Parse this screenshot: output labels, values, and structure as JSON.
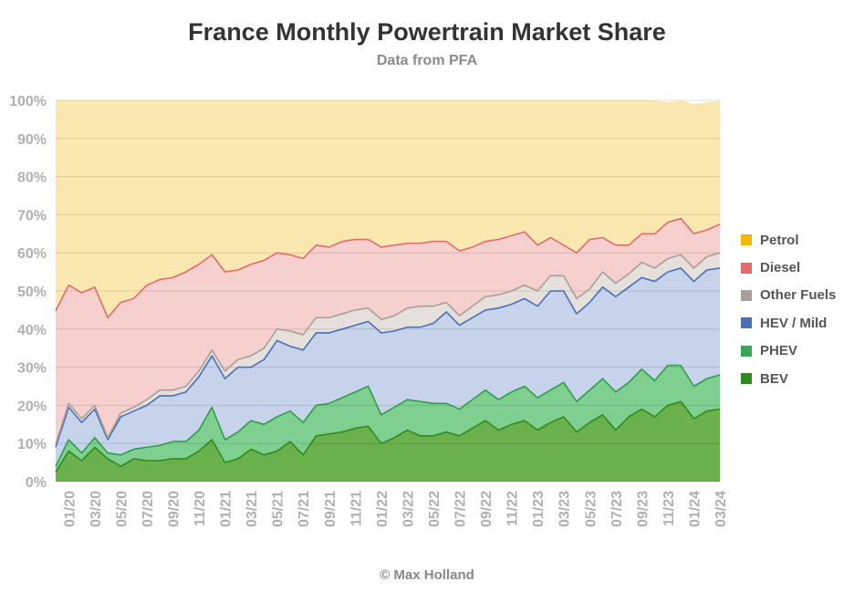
{
  "chart_data": {
    "type": "area",
    "stacked": true,
    "title": "France Monthly Powertrain Market Share",
    "subtitle": "Data from PFA",
    "credit": "© Max Holland",
    "y_ticks": [
      "0%",
      "10%",
      "20%",
      "30%",
      "40%",
      "50%",
      "60%",
      "70%",
      "80%",
      "90%",
      "100%"
    ],
    "ylim": [
      0,
      100
    ],
    "x": [
      "12/19",
      "01/20",
      "02/20",
      "03/20",
      "04/20",
      "05/20",
      "06/20",
      "07/20",
      "08/20",
      "09/20",
      "10/20",
      "11/20",
      "12/20",
      "01/21",
      "02/21",
      "03/21",
      "04/21",
      "05/21",
      "06/21",
      "07/21",
      "08/21",
      "09/21",
      "10/21",
      "11/21",
      "12/21",
      "01/22",
      "02/22",
      "03/22",
      "04/22",
      "05/22",
      "06/22",
      "07/22",
      "08/22",
      "09/22",
      "10/22",
      "11/22",
      "12/22",
      "01/23",
      "02/23",
      "03/23",
      "04/23",
      "05/23",
      "06/23",
      "07/23",
      "08/23",
      "09/23",
      "10/23",
      "11/23",
      "12/23",
      "01/24",
      "02/24",
      "03/24"
    ],
    "x_tick_labels": [
      "01/20",
      "03/20",
      "05/20",
      "07/20",
      "09/20",
      "11/20",
      "01/21",
      "03/21",
      "05/21",
      "07/21",
      "09/21",
      "11/21",
      "01/22",
      "03/22",
      "05/22",
      "07/22",
      "09/22",
      "11/22",
      "01/23",
      "03/23",
      "05/23",
      "07/23",
      "09/23",
      "11/23",
      "01/24",
      "03/24"
    ],
    "grid": true,
    "legend_position": "right",
    "series": [
      {
        "name": "BEV",
        "color": "#2e8b1e",
        "fill": "#6ab04c",
        "line_color": "#2e8b1e",
        "values": [
          2.5,
          8,
          5.5,
          9,
          6,
          4,
          6,
          5.5,
          5.5,
          6,
          6,
          8,
          11,
          5,
          6,
          8.5,
          7,
          8,
          10.5,
          7,
          12,
          12.5,
          13,
          14,
          14.5,
          10,
          11.5,
          13.5,
          12,
          12,
          13,
          12,
          14,
          16,
          13.5,
          15,
          16,
          13.5,
          15.5,
          17,
          13,
          15.5,
          17.5,
          13.5,
          17,
          19,
          17,
          20,
          21,
          16.5,
          18.5,
          19
        ]
      },
      {
        "name": "PHEV",
        "color": "#34a853",
        "fill": "#7fcf91",
        "line_color": "#2e9e4a",
        "values": [
          1.5,
          3,
          2,
          2.5,
          1.5,
          3,
          2.5,
          3.5,
          4,
          4.5,
          4.5,
          5.5,
          8.5,
          6,
          7,
          7.5,
          8,
          9,
          8,
          8.5,
          8,
          8,
          9,
          9.5,
          10.5,
          7.5,
          8,
          8,
          9,
          8.5,
          7.5,
          7,
          7.5,
          8,
          8,
          8.5,
          9,
          8.5,
          8.5,
          9,
          8,
          8.5,
          9.5,
          10,
          9,
          10.5,
          9.5,
          10.5,
          9.5,
          8.5,
          8.5,
          9
        ]
      },
      {
        "name": "HEV / Mild",
        "color": "#4a6fb5",
        "fill": "#c6d3ea",
        "line_color": "#4a6fb5",
        "values": [
          5,
          8.5,
          8,
          7.5,
          3.5,
          10,
          10,
          11,
          13,
          12,
          13,
          14,
          13.5,
          16,
          17,
          14,
          17,
          20,
          17,
          19,
          19,
          18.5,
          18,
          17.5,
          17,
          21.5,
          20,
          19,
          19.5,
          21,
          24,
          22,
          21.5,
          21,
          24,
          23,
          23,
          24,
          26,
          24,
          23,
          23,
          24,
          25,
          25,
          24,
          26,
          24.5,
          25.5,
          27.5,
          28.5,
          28
        ]
      },
      {
        "name": "Other Fuels",
        "color": "#a89f98",
        "fill": "#e5e0dc",
        "line_color": "#a89f98",
        "values": [
          0.8,
          1,
          1,
          1,
          0.5,
          1,
          1,
          1.5,
          1.5,
          1.5,
          1.5,
          1.5,
          1.5,
          2,
          2,
          3,
          3,
          3,
          4,
          4,
          4,
          4,
          4,
          4,
          3.5,
          3.5,
          4,
          5,
          5.5,
          4.5,
          2.5,
          2.5,
          3,
          3.5,
          3.5,
          3.5,
          3.5,
          4,
          4,
          4,
          4,
          3.5,
          4,
          3.5,
          3.5,
          4,
          3.5,
          3.5,
          3.5,
          3.5,
          3.5,
          4
        ]
      },
      {
        "name": "Diesel",
        "color": "#e06c6c",
        "fill": "#f6cfcf",
        "line_color": "#e06c6c",
        "values": [
          35,
          31,
          33,
          31,
          31.5,
          29,
          28.5,
          30,
          29,
          29.5,
          30,
          28,
          25,
          26,
          23.5,
          24,
          23,
          20,
          20,
          20,
          19,
          18.5,
          19,
          18.5,
          18,
          19,
          18.5,
          17,
          16.5,
          17,
          16,
          17,
          15.5,
          14.5,
          14.5,
          14.5,
          14,
          12,
          10,
          8,
          12,
          13,
          9,
          10,
          7.5,
          7.5,
          9,
          9.5,
          9.5,
          9,
          7,
          7.5
        ]
      },
      {
        "name": "Petrol",
        "color": "#f5b800",
        "fill": "#fbe8b0",
        "line_color": "#f5b800",
        "values": [
          55.2,
          48.5,
          50.5,
          49,
          57.5,
          53,
          52,
          48.5,
          47,
          46.5,
          45,
          43,
          40.5,
          45,
          44.5,
          43,
          42,
          40,
          40.5,
          41.5,
          38,
          38.5,
          37,
          36.5,
          36.5,
          38.5,
          38,
          37.5,
          37.5,
          37,
          37,
          39.5,
          38.5,
          37,
          36.5,
          35.5,
          34.5,
          38,
          36,
          38,
          40,
          36.5,
          36,
          38,
          38,
          35.5,
          35,
          31.5,
          31,
          34,
          33.5,
          33
        ]
      }
    ]
  }
}
